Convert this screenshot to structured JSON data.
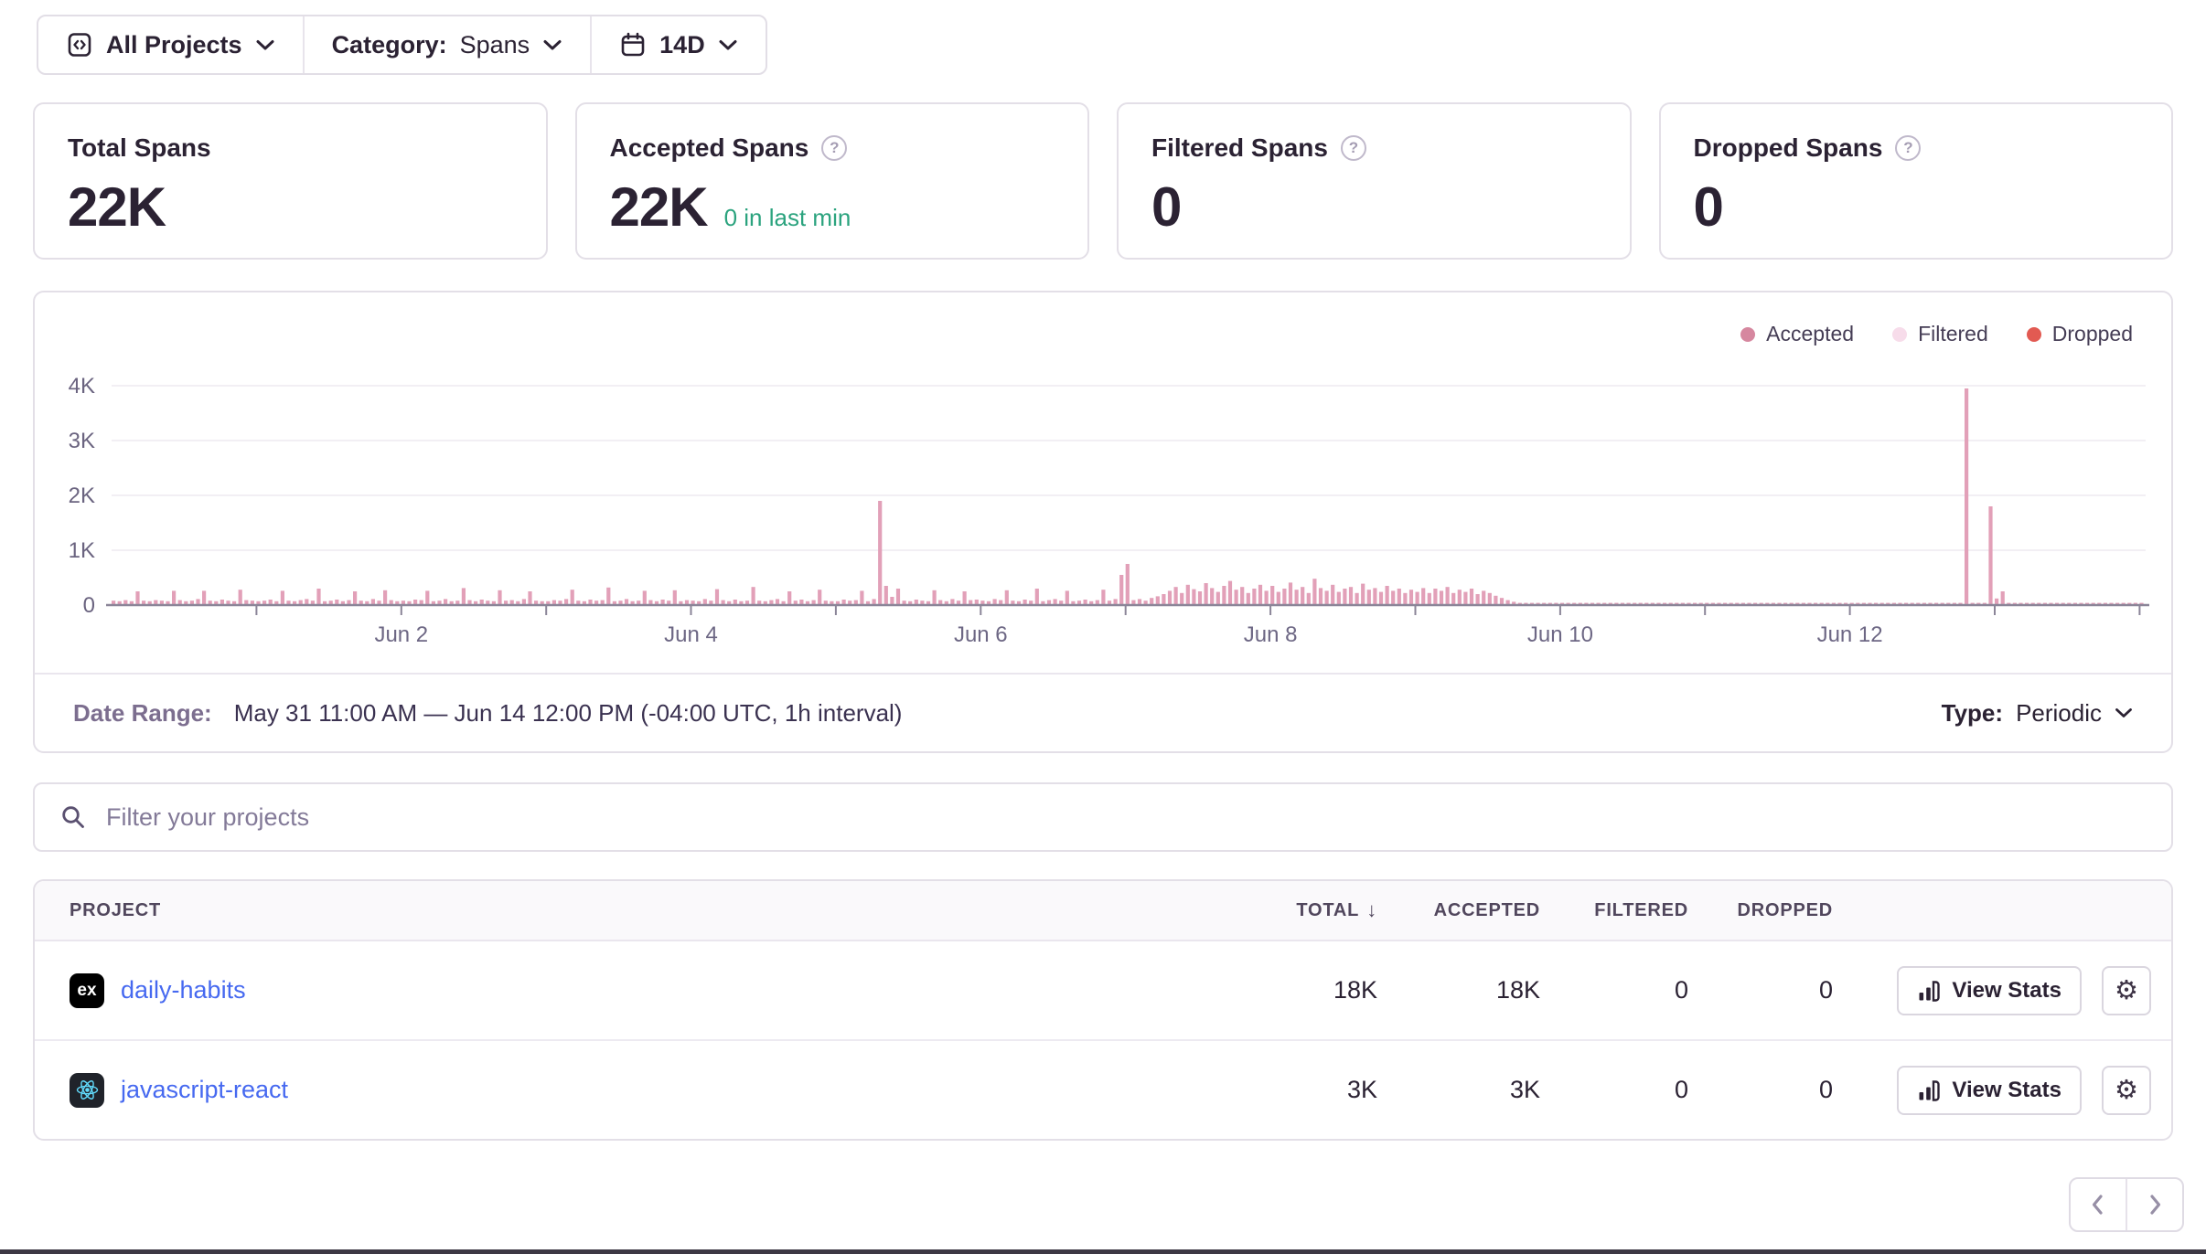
{
  "filter_bar": {
    "projects": {
      "label": "All Projects"
    },
    "category": {
      "label": "Category:",
      "value": "Spans"
    },
    "date_range": {
      "value": "14D"
    }
  },
  "help_glyph": "?",
  "stat_cards": [
    {
      "title": "Total Spans",
      "value": "22K"
    },
    {
      "title": "Accepted Spans",
      "value": "22K",
      "note": "0 in last min"
    },
    {
      "title": "Filtered Spans",
      "value": "0"
    },
    {
      "title": "Dropped Spans",
      "value": "0"
    }
  ],
  "chart_footer": {
    "date_range_label": "Date Range:",
    "date_range_value": "May 31 11:00 AM — Jun 14 12:00 PM (-04:00 UTC, 1h interval)",
    "type_label": "Type:",
    "type_value": "Periodic"
  },
  "search": {
    "placeholder": "Filter your projects"
  },
  "table": {
    "columns": [
      "Project",
      "Total",
      "Accepted",
      "Filtered",
      "Dropped"
    ],
    "sort_indicator": "↓",
    "view_stats_label": "View Stats",
    "gear_glyph": "⚙",
    "rows": [
      {
        "platform": "expo",
        "platform_glyph": "ex",
        "name": "daily-habits",
        "total": "18K",
        "accepted": "18K",
        "filtered": "0",
        "dropped": "0"
      },
      {
        "platform": "react",
        "platform_glyph": "",
        "name": "javascript-react",
        "total": "3K",
        "accepted": "3K",
        "filtered": "0",
        "dropped": "0"
      }
    ]
  },
  "colors": {
    "accepted_bar": "#e2a0b8",
    "legend_accepted": "#d6879f",
    "legend_filtered": "#f7dcea",
    "legend_dropped": "#e25a52",
    "link": "#4669f0",
    "success_green": "#2ba37e"
  },
  "chart_data": {
    "type": "bar",
    "title": "Spans usage over time (hourly)",
    "x_start": "May 31 00:00",
    "x_end": "Jun 14 00:00",
    "interval": "1h",
    "ylim": [
      0,
      4400
    ],
    "grid": true,
    "legend_position": "top-right",
    "y_ticks": [
      "0",
      "1K",
      "2K",
      "3K",
      "4K"
    ],
    "x_tick_labels": [
      {
        "label": "Jun 2",
        "hour": 48
      },
      {
        "label": "Jun 4",
        "hour": 96
      },
      {
        "label": "Jun 6",
        "hour": 144
      },
      {
        "label": "Jun 8",
        "hour": 192
      },
      {
        "label": "Jun 10",
        "hour": 240
      },
      {
        "label": "Jun 12",
        "hour": 288
      }
    ],
    "series": [
      {
        "name": "Accepted",
        "color": "#d6879f",
        "bar_color": "#e2a0b8",
        "values": [
          80,
          70,
          90,
          70,
          250,
          80,
          70,
          90,
          80,
          70,
          260,
          90,
          70,
          80,
          110,
          260,
          80,
          70,
          100,
          80,
          70,
          280,
          90,
          80,
          70,
          80,
          100,
          70,
          260,
          80,
          70,
          90,
          110,
          80,
          300,
          70,
          80,
          100,
          70,
          90,
          250,
          80,
          70,
          110,
          80,
          270,
          90,
          70,
          80,
          70,
          100,
          90,
          260,
          70,
          80,
          110,
          70,
          80,
          310,
          90,
          70,
          100,
          80,
          70,
          270,
          80,
          90,
          70,
          110,
          250,
          80,
          70,
          70,
          90,
          80,
          110,
          280,
          80,
          70,
          100,
          80,
          90,
          320,
          70,
          80,
          110,
          70,
          80,
          260,
          90,
          70,
          100,
          80,
          270,
          70,
          90,
          80,
          70,
          110,
          80,
          290,
          90,
          70,
          100,
          70,
          80,
          330,
          80,
          70,
          90,
          110,
          70,
          250,
          80,
          100,
          70,
          90,
          280,
          80,
          70,
          70,
          100,
          80,
          90,
          260,
          70,
          110,
          1900,
          350,
          150,
          300,
          80,
          70,
          100,
          80,
          70,
          270,
          90,
          70,
          110,
          80,
          250,
          90,
          100,
          80,
          70,
          110,
          90,
          270,
          80,
          70,
          100,
          80,
          300,
          70,
          90,
          110,
          80,
          260,
          70,
          80,
          100,
          70,
          90,
          280,
          80,
          110,
          550,
          750,
          90,
          110,
          80,
          130,
          160,
          200,
          260,
          330,
          220,
          370,
          290,
          250,
          400,
          310,
          240,
          350,
          440,
          280,
          330,
          220,
          300,
          370,
          260,
          350,
          240,
          300,
          410,
          280,
          330,
          220,
          480,
          310,
          260,
          370,
          240,
          300,
          330,
          220,
          390,
          280,
          310,
          240,
          350,
          260,
          300,
          220,
          280,
          240,
          310,
          220,
          300,
          260,
          330,
          220,
          280,
          240,
          300,
          200,
          260,
          220,
          170,
          130,
          90,
          60,
          30,
          20,
          25,
          20,
          25,
          20,
          25,
          20,
          25,
          20,
          28,
          20,
          25,
          20,
          25,
          28,
          20,
          25,
          20,
          25,
          20,
          28,
          20,
          25,
          20,
          25,
          28,
          20,
          25,
          20,
          25,
          25,
          20,
          28,
          20,
          25,
          20,
          25,
          28,
          20,
          25,
          20,
          25,
          20,
          28,
          20,
          25,
          20,
          25,
          28,
          20,
          25,
          20,
          25,
          20,
          20,
          25,
          20,
          28,
          20,
          25,
          20,
          25,
          28,
          20,
          25,
          20,
          25,
          20,
          28,
          20,
          25,
          20,
          25,
          3950,
          30,
          25,
          20,
          1800,
          120,
          250,
          25,
          20,
          25,
          20,
          28,
          20,
          25,
          20,
          25,
          28,
          20,
          25,
          20,
          25,
          20,
          28,
          20,
          25,
          20,
          25,
          28,
          20,
          20
        ]
      },
      {
        "name": "Filtered",
        "color": "#f7dcea",
        "all_zero": true
      },
      {
        "name": "Dropped",
        "color": "#e25a52",
        "all_zero": true
      }
    ]
  }
}
